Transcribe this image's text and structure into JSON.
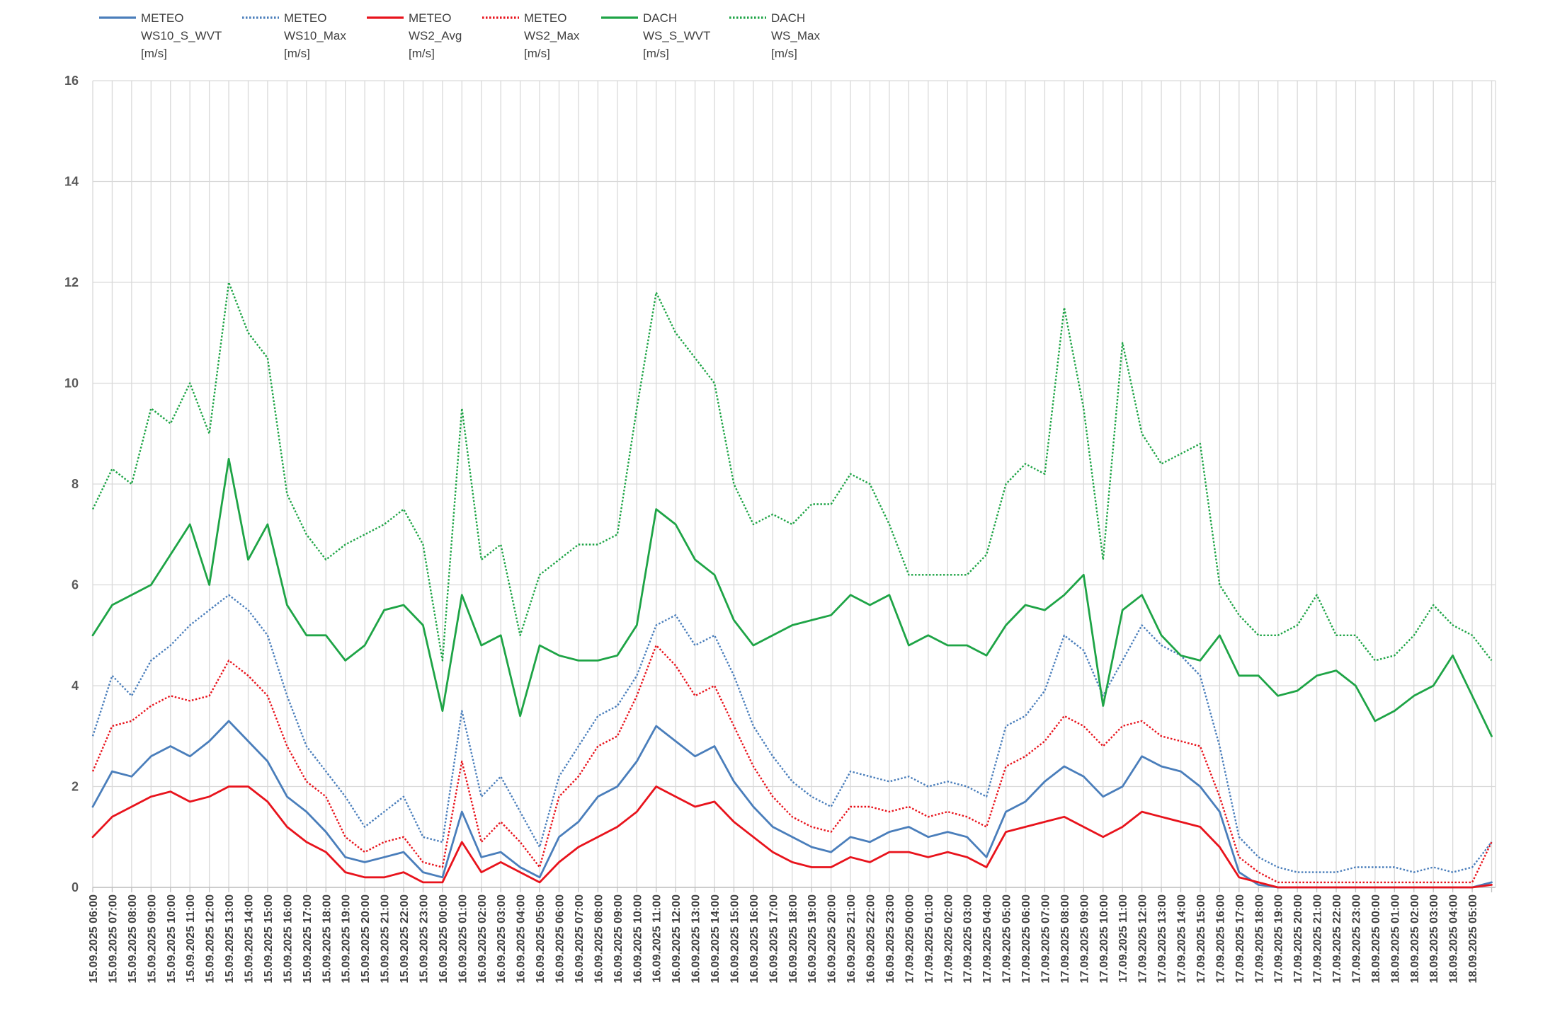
{
  "chart_data": {
    "type": "line",
    "title": "",
    "xlabel": "",
    "ylabel": "",
    "ylim": [
      0,
      16
    ],
    "yticks": [
      0,
      2,
      4,
      6,
      8,
      10,
      12,
      14,
      16
    ],
    "grid": true,
    "legend_position": "top-left",
    "x_tick_labels": [
      "15.09.2025 06:00",
      "15.09.2025 07:00",
      "15.09.2025 08:00",
      "15.09.2025 09:00",
      "15.09.2025 10:00",
      "15.09.2025 11:00",
      "15.09.2025 12:00",
      "15.09.2025 13:00",
      "15.09.2025 14:00",
      "15.09.2025 15:00",
      "15.09.2025 16:00",
      "15.09.2025 17:00",
      "15.09.2025 18:00",
      "15.09.2025 19:00",
      "15.09.2025 20:00",
      "15.09.2025 21:00",
      "15.09.2025 22:00",
      "15.09.2025 23:00",
      "16.09.2025 00:00",
      "16.09.2025 01:00",
      "16.09.2025 02:00",
      "16.09.2025 03:00",
      "16.09.2025 04:00",
      "16.09.2025 05:00",
      "16.09.2025 06:00",
      "16.09.2025 07:00",
      "16.09.2025 08:00",
      "16.09.2025 09:00",
      "16.09.2025 10:00",
      "16.09.2025 11:00",
      "16.09.2025 12:00",
      "16.09.2025 13:00",
      "16.09.2025 14:00",
      "16.09.2025 15:00",
      "16.09.2025 16:00",
      "16.09.2025 17:00",
      "16.09.2025 18:00",
      "16.09.2025 19:00",
      "16.09.2025 20:00",
      "16.09.2025 21:00",
      "16.09.2025 22:00",
      "16.09.2025 23:00",
      "17.09.2025 00:00",
      "17.09.2025 01:00",
      "17.09.2025 02:00",
      "17.09.2025 03:00",
      "17.09.2025 04:00",
      "17.09.2025 05:00",
      "17.09.2025 06:00",
      "17.09.2025 07:00",
      "17.09.2025 08:00",
      "17.09.2025 09:00",
      "17.09.2025 10:00",
      "17.09.2025 11:00",
      "17.09.2025 12:00",
      "17.09.2025 13:00",
      "17.09.2025 14:00",
      "17.09.2025 15:00",
      "17.09.2025 16:00",
      "17.09.2025 17:00",
      "17.09.2025 18:00",
      "17.09.2025 19:00",
      "17.09.2025 20:00",
      "17.09.2025 21:00",
      "17.09.2025 22:00",
      "17.09.2025 23:00",
      "18.09.2025 00:00",
      "18.09.2025 01:00",
      "18.09.2025 02:00",
      "18.09.2025 03:00",
      "18.09.2025 04:00",
      "18.09.2025 05:00"
    ],
    "x": [
      0,
      1,
      2,
      3,
      4,
      5,
      6,
      7,
      8,
      9,
      10,
      11,
      12,
      13,
      14,
      15,
      16,
      17,
      18,
      19,
      20,
      21,
      22,
      23,
      24,
      25,
      26,
      27,
      28,
      29,
      30,
      31,
      32,
      33,
      34,
      35,
      36,
      37,
      38,
      39,
      40,
      41,
      42,
      43,
      44,
      45,
      46,
      47,
      48,
      49,
      50,
      51,
      52,
      53,
      54,
      55,
      56,
      57,
      58,
      59,
      60,
      61,
      62,
      63,
      64,
      65,
      66,
      67,
      68,
      69,
      70,
      71,
      72
    ],
    "x_end": 72.2,
    "series": [
      {
        "name": "METEO WS10_S_WVT [m/s]",
        "legend_lines": [
          "METEO",
          "WS10_S_WVT",
          "[m/s]"
        ],
        "color": "#4a7ebb",
        "dash": "solid",
        "values": [
          1.6,
          2.3,
          2.2,
          2.6,
          2.8,
          2.6,
          2.9,
          3.3,
          2.9,
          2.5,
          1.8,
          1.5,
          1.1,
          0.6,
          0.5,
          0.6,
          0.7,
          0.3,
          0.2,
          1.5,
          0.6,
          0.7,
          0.4,
          0.2,
          1.0,
          1.3,
          1.8,
          2.0,
          2.5,
          3.2,
          2.9,
          2.6,
          2.8,
          2.1,
          1.6,
          1.2,
          1.0,
          0.8,
          0.7,
          1.0,
          0.9,
          1.1,
          1.2,
          1.0,
          1.1,
          1.0,
          0.6,
          1.5,
          1.7,
          2.1,
          2.4,
          2.2,
          1.8,
          2.0,
          2.6,
          2.4,
          2.3,
          2.0,
          1.5,
          0.3,
          0.05,
          0.0,
          0.0,
          0.0,
          0.0,
          0.0,
          0.0,
          0.0,
          0.0,
          0.0,
          0.0,
          0.0,
          0.1
        ]
      },
      {
        "name": "METEO WS10_Max [m/s]",
        "legend_lines": [
          "METEO",
          "WS10_Max",
          "[m/s]"
        ],
        "color": "#4a7ebb",
        "dash": "dotted",
        "values": [
          3.0,
          4.2,
          3.8,
          4.5,
          4.8,
          5.2,
          5.5,
          5.8,
          5.5,
          5.0,
          3.8,
          2.8,
          2.3,
          1.8,
          1.2,
          1.5,
          1.8,
          1.0,
          0.9,
          3.5,
          1.8,
          2.2,
          1.5,
          0.8,
          2.2,
          2.8,
          3.4,
          3.6,
          4.2,
          5.2,
          5.4,
          4.8,
          5.0,
          4.2,
          3.2,
          2.6,
          2.1,
          1.8,
          1.6,
          2.3,
          2.2,
          2.1,
          2.2,
          2.0,
          2.1,
          2.0,
          1.8,
          3.2,
          3.4,
          3.9,
          5.0,
          4.7,
          3.8,
          4.5,
          5.2,
          4.8,
          4.6,
          4.2,
          2.8,
          1.0,
          0.6,
          0.4,
          0.3,
          0.3,
          0.3,
          0.4,
          0.4,
          0.4,
          0.3,
          0.4,
          0.3,
          0.4,
          0.9
        ]
      },
      {
        "name": "METEO WS2_Avg [m/s]",
        "legend_lines": [
          "METEO",
          "WS2_Avg",
          "[m/s]"
        ],
        "color": "#e8131c",
        "dash": "solid",
        "values": [
          1.0,
          1.4,
          1.6,
          1.8,
          1.9,
          1.7,
          1.8,
          2.0,
          2.0,
          1.7,
          1.2,
          0.9,
          0.7,
          0.3,
          0.2,
          0.2,
          0.3,
          0.1,
          0.1,
          0.9,
          0.3,
          0.5,
          0.3,
          0.1,
          0.5,
          0.8,
          1.0,
          1.2,
          1.5,
          2.0,
          1.8,
          1.6,
          1.7,
          1.3,
          1.0,
          0.7,
          0.5,
          0.4,
          0.4,
          0.6,
          0.5,
          0.7,
          0.7,
          0.6,
          0.7,
          0.6,
          0.4,
          1.1,
          1.2,
          1.3,
          1.4,
          1.2,
          1.0,
          1.2,
          1.5,
          1.4,
          1.3,
          1.2,
          0.8,
          0.2,
          0.1,
          0.0,
          0.0,
          0.0,
          0.0,
          0.0,
          0.0,
          0.0,
          0.0,
          0.0,
          0.0,
          0.0,
          0.05
        ]
      },
      {
        "name": "METEO WS2_Max [m/s]",
        "legend_lines": [
          "METEO",
          "WS2_Max",
          "[m/s]"
        ],
        "color": "#e8131c",
        "dash": "dotted",
        "values": [
          2.3,
          3.2,
          3.3,
          3.6,
          3.8,
          3.7,
          3.8,
          4.5,
          4.2,
          3.8,
          2.8,
          2.1,
          1.8,
          1.0,
          0.7,
          0.9,
          1.0,
          0.5,
          0.4,
          2.5,
          0.9,
          1.3,
          0.9,
          0.4,
          1.8,
          2.2,
          2.8,
          3.0,
          3.8,
          4.8,
          4.4,
          3.8,
          4.0,
          3.2,
          2.4,
          1.8,
          1.4,
          1.2,
          1.1,
          1.6,
          1.6,
          1.5,
          1.6,
          1.4,
          1.5,
          1.4,
          1.2,
          2.4,
          2.6,
          2.9,
          3.4,
          3.2,
          2.8,
          3.2,
          3.3,
          3.0,
          2.9,
          2.8,
          1.8,
          0.6,
          0.3,
          0.1,
          0.1,
          0.1,
          0.1,
          0.1,
          0.1,
          0.1,
          0.1,
          0.1,
          0.1,
          0.1,
          0.9
        ]
      },
      {
        "name": "DACH WS_S_WVT [m/s]",
        "legend_lines": [
          "DACH",
          "WS_S_WVT",
          "[m/s]"
        ],
        "color": "#1ea446",
        "dash": "solid",
        "values": [
          5.0,
          5.6,
          5.8,
          6.0,
          6.6,
          7.2,
          6.0,
          8.5,
          6.5,
          7.2,
          5.6,
          5.0,
          5.0,
          4.5,
          4.8,
          5.5,
          5.6,
          5.2,
          3.5,
          5.8,
          4.8,
          5.0,
          3.4,
          4.8,
          4.6,
          4.5,
          4.5,
          4.6,
          5.2,
          7.5,
          7.2,
          6.5,
          6.2,
          5.3,
          4.8,
          5.0,
          5.2,
          5.3,
          5.4,
          5.8,
          5.6,
          5.8,
          4.8,
          5.0,
          4.8,
          4.8,
          4.6,
          5.2,
          5.6,
          5.5,
          5.8,
          6.2,
          3.6,
          5.5,
          5.8,
          5.0,
          4.6,
          4.5,
          5.0,
          4.2,
          4.2,
          3.8,
          3.9,
          4.2,
          4.3,
          4.0,
          3.3,
          3.5,
          3.8,
          4.0,
          4.6,
          3.8,
          3.0
        ]
      },
      {
        "name": "DACH WS_Max [m/s]",
        "legend_lines": [
          "DACH",
          "WS_Max",
          "[m/s]"
        ],
        "color": "#1ea446",
        "dash": "dotted",
        "values": [
          7.5,
          8.3,
          8.0,
          9.5,
          9.2,
          10.0,
          9.0,
          12.0,
          11.0,
          10.5,
          7.8,
          7.0,
          6.5,
          6.8,
          7.0,
          7.2,
          7.5,
          6.8,
          4.5,
          9.5,
          6.5,
          6.8,
          5.0,
          6.2,
          6.5,
          6.8,
          6.8,
          7.0,
          9.5,
          11.8,
          11.0,
          10.5,
          10.0,
          8.0,
          7.2,
          7.4,
          7.2,
          7.6,
          7.6,
          8.2,
          8.0,
          7.2,
          6.2,
          6.2,
          6.2,
          6.2,
          6.6,
          8.0,
          8.4,
          8.2,
          11.5,
          9.5,
          6.5,
          10.8,
          9.0,
          8.4,
          8.6,
          8.8,
          6.0,
          5.4,
          5.0,
          5.0,
          5.2,
          5.8,
          5.0,
          5.0,
          4.5,
          4.6,
          5.0,
          5.6,
          5.2,
          5.0,
          4.5
        ]
      }
    ]
  }
}
